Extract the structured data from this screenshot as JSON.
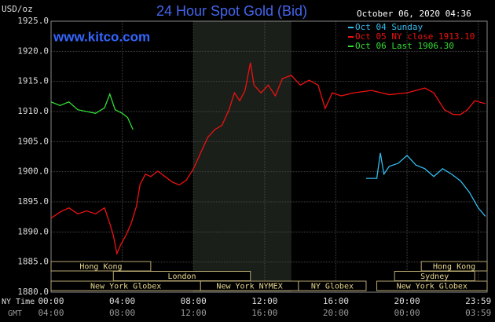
{
  "chart_data": {
    "type": "line",
    "title": "24 Hour Spot Gold (Bid)",
    "watermark": "www.kitco.com",
    "timestamp": "October 06, 2020 04:36",
    "y_unit": "USD/oz",
    "x_row_labels": [
      "NY Time",
      "GMT"
    ],
    "xlim": [
      0,
      24.5
    ],
    "ylim": [
      1880,
      1925
    ],
    "yticks": [
      {
        "value": 1880,
        "label": "1880.0"
      },
      {
        "value": 1885,
        "label": "1885.0"
      },
      {
        "value": 1890,
        "label": "1890.0"
      },
      {
        "value": 1895,
        "label": "1895.0"
      },
      {
        "value": 1900,
        "label": "1900.0"
      },
      {
        "value": 1905,
        "label": "1905.0"
      },
      {
        "value": 1910,
        "label": "1910.0"
      },
      {
        "value": 1915,
        "label": "1915.0"
      },
      {
        "value": 1920,
        "label": "1920.0"
      },
      {
        "value": 1925,
        "label": "1925.0"
      }
    ],
    "xticks": [
      {
        "value": 0,
        "label": "00:00"
      },
      {
        "value": 4,
        "label": "04:00"
      },
      {
        "value": 8,
        "label": "08:00"
      },
      {
        "value": 12,
        "label": "12:00"
      },
      {
        "value": 16,
        "label": "16:00"
      },
      {
        "value": 20,
        "label": "20:00"
      },
      {
        "value": 24,
        "label": "23:59"
      }
    ],
    "gmt_labels": [
      "04:00",
      "08:00",
      "12:00",
      "16:00",
      "20:00",
      "00:00",
      "03:59"
    ],
    "grid": true,
    "highlight_range": [
      8,
      13.5
    ],
    "series": [
      {
        "name": "Oct 04 Sunday",
        "color": "#33bbee",
        "x": [
          17.7,
          18.3,
          18.5,
          18.7,
          19.0,
          19.5,
          20.0,
          20.5,
          21.0,
          21.5,
          22.0,
          22.5,
          23.0,
          23.5,
          24.0,
          24.4
        ],
        "values": [
          1898.9,
          1898.9,
          1903.1,
          1899.6,
          1900.9,
          1901.4,
          1902.7,
          1901.1,
          1900.5,
          1899.2,
          1900.5,
          1899.6,
          1898.5,
          1896.6,
          1894.0,
          1892.6
        ]
      },
      {
        "name": "Oct 05 NY close 1913.10",
        "color": "#ee1111",
        "x": [
          0,
          0.5,
          1,
          1.5,
          2,
          2.5,
          3,
          3.3,
          3.5,
          3.7,
          3.9,
          4.2,
          4.5,
          4.8,
          5.0,
          5.3,
          5.6,
          6.0,
          6.4,
          6.8,
          7.2,
          7.6,
          8.0,
          8.4,
          8.8,
          9.2,
          9.6,
          10.0,
          10.3,
          10.6,
          10.9,
          11.2,
          11.4,
          11.8,
          12.2,
          12.6,
          13.0,
          13.5,
          14.0,
          14.5,
          15.0,
          15.4,
          15.8,
          16.3,
          17,
          18,
          19,
          20,
          21,
          21.5,
          22.1,
          22.6,
          23.0,
          23.4,
          23.8,
          24.4
        ],
        "values": [
          1892.3,
          1893.3,
          1894.0,
          1893.0,
          1893.5,
          1893.0,
          1894.0,
          1891.4,
          1889.4,
          1886.4,
          1887.8,
          1889.4,
          1891.4,
          1894.3,
          1897.9,
          1899.6,
          1899.2,
          1900.1,
          1899.2,
          1898.3,
          1897.8,
          1898.6,
          1900.5,
          1903.1,
          1905.7,
          1907.0,
          1907.7,
          1910.3,
          1913.1,
          1911.8,
          1913.5,
          1918.1,
          1914.4,
          1913.1,
          1914.4,
          1912.6,
          1915.5,
          1916.0,
          1914.4,
          1915.2,
          1914.4,
          1910.5,
          1913.1,
          1912.6,
          1913.1,
          1913.5,
          1912.8,
          1913.1,
          1913.9,
          1913.1,
          1910.3,
          1909.5,
          1909.5,
          1910.3,
          1911.8,
          1911.3
        ]
      },
      {
        "name": "Oct 06 Last 1906.30",
        "color": "#33dd33",
        "x": [
          0,
          0.5,
          1.0,
          1.5,
          2.0,
          2.5,
          3.0,
          3.3,
          3.6,
          4.0,
          4.3,
          4.6
        ],
        "values": [
          1911.6,
          1911.0,
          1911.6,
          1910.3,
          1910.0,
          1909.7,
          1910.6,
          1912.9,
          1910.3,
          1909.7,
          1909.0,
          1907.0
        ]
      }
    ],
    "sessions": [
      {
        "label": "Hong Kong",
        "start": 0,
        "end": 5.6,
        "row": 0
      },
      {
        "label": "Hong Kong",
        "start": 20.8,
        "end": 24.5,
        "row": 0
      },
      {
        "label": "London",
        "start": 3.5,
        "end": 11.2,
        "row": 1
      },
      {
        "label": "Sydney",
        "start": 19.3,
        "end": 23.8,
        "row": 1
      },
      {
        "label": "New York Globex",
        "start": 0,
        "end": 8.4,
        "row": 2
      },
      {
        "label": "New York NYMEX",
        "start": 8.4,
        "end": 13.9,
        "row": 2
      },
      {
        "label": "NY Globex",
        "start": 13.9,
        "end": 17.7,
        "row": 2
      },
      {
        "label": "New York Globex",
        "start": 18.3,
        "end": 24.5,
        "row": 2
      }
    ]
  }
}
